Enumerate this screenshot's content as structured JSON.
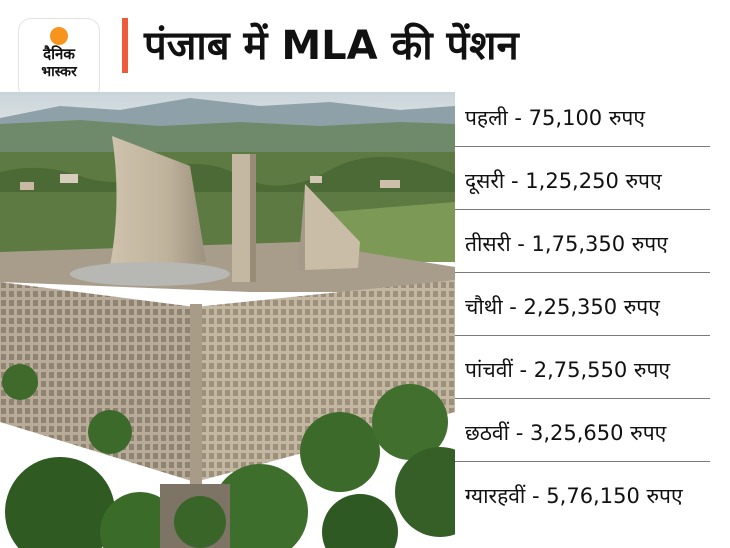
{
  "logo": {
    "line1": "दैनिक",
    "line2": "भास्कर",
    "accent": "#f7941d"
  },
  "title": "पंजाब में MLA की पेंशन",
  "accent_bar_color": "#ef5b3a",
  "pensions": [
    {
      "text": "पहली  - 75,100 रुपए"
    },
    {
      "text": "दूसरी - 1,25,250 रुपए"
    },
    {
      "text": "तीसरी - 1,75,350 रुपए"
    },
    {
      "text": "चौथी - 2,25,350 रुपए"
    },
    {
      "text": "पांचवीं - 2,75,550 रुपए"
    },
    {
      "text": "छठवीं - 3,25,650 रुपए"
    },
    {
      "text": "ग्यारहवीं - 5,76,150 रुपए"
    }
  ]
}
